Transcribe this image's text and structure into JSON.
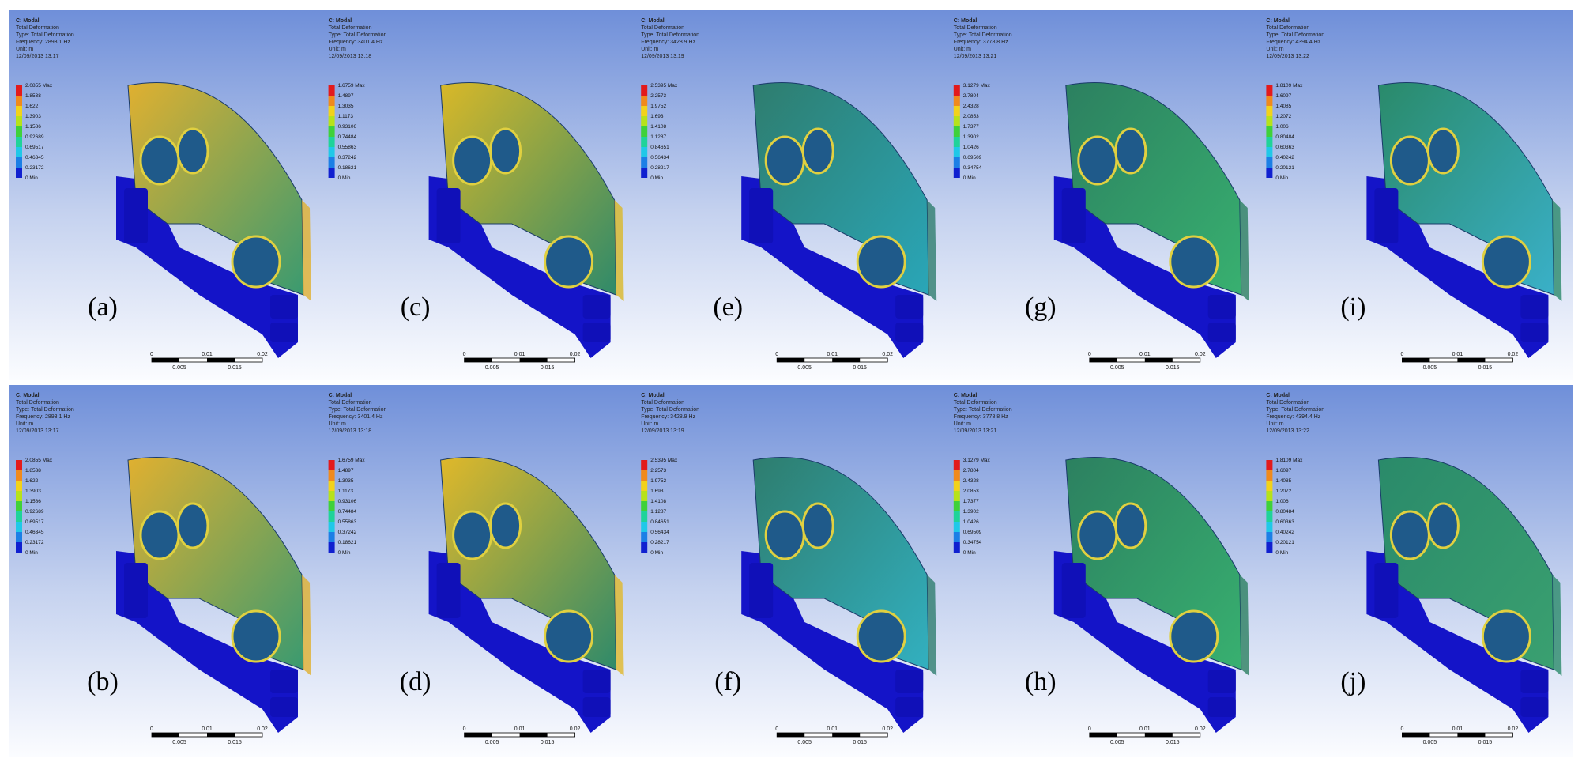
{
  "panels": [
    {
      "label": "(a)",
      "header": [
        "C: Modal",
        "Total Deformation",
        "Type: Total Deformation",
        "Frequency: 2893.1 Hz",
        "Unit: m",
        "12/09/2013 13:17"
      ],
      "legend": [
        "2.0855 Max",
        "1.8538",
        "1.622",
        "1.3903",
        "1.1586",
        "0.92689",
        "0.69517",
        "0.46345",
        "0.23172",
        "0 Min"
      ],
      "scale": [
        "0",
        "0.01",
        "0.02",
        "0.005",
        "0.015"
      ]
    },
    {
      "label": "(b)",
      "header": [
        "C: Modal",
        "Total Deformation",
        "Type: Total Deformation",
        "Frequency: 2893.1 Hz",
        "Unit: m",
        "12/09/2013 13:17"
      ],
      "legend": [
        "2.0855 Max",
        "1.8538",
        "1.622",
        "1.3903",
        "1.1586",
        "0.92689",
        "0.69517",
        "0.46345",
        "0.23172",
        "0 Min"
      ],
      "scale": [
        "0",
        "0.01",
        "0.02",
        "0.005",
        "0.015"
      ]
    },
    {
      "label": "(c)",
      "header": [
        "C: Modal",
        "Total Deformation",
        "Type: Total Deformation",
        "Frequency: 3401.4 Hz",
        "Unit: m",
        "12/09/2013 13:18"
      ],
      "legend": [
        "1.6759 Max",
        "1.4897",
        "1.3035",
        "1.1173",
        "0.93106",
        "0.74484",
        "0.55863",
        "0.37242",
        "0.18621",
        "0 Min"
      ],
      "scale": [
        "0",
        "0.01",
        "0.02",
        "0.005",
        "0.015"
      ]
    },
    {
      "label": "(d)",
      "header": [
        "C: Modal",
        "Total Deformation",
        "Type: Total Deformation",
        "Frequency: 3401.4 Hz",
        "Unit: m",
        "12/09/2013 13:18"
      ],
      "legend": [
        "1.6759 Max",
        "1.4897",
        "1.3035",
        "1.1173",
        "0.93106",
        "0.74484",
        "0.55863",
        "0.37242",
        "0.18621",
        "0 Min"
      ],
      "scale": [
        "0",
        "0.01",
        "0.02",
        "0.005",
        "0.015"
      ]
    },
    {
      "label": "(e)",
      "header": [
        "C: Modal",
        "Total Deformation",
        "Type: Total Deformation",
        "Frequency: 3428.9 Hz",
        "Unit: m",
        "12/09/2013 13:19"
      ],
      "legend": [
        "2.5395 Max",
        "2.2573",
        "1.9752",
        "1.693",
        "1.4108",
        "1.1287",
        "0.84651",
        "0.56434",
        "0.28217",
        "0 Min"
      ],
      "scale": [
        "0",
        "0.01",
        "0.02",
        "0.005",
        "0.015"
      ]
    },
    {
      "label": "(f)",
      "header": [
        "C: Modal",
        "Total Deformation",
        "Type: Total Deformation",
        "Frequency: 3428.9 Hz",
        "Unit: m",
        "12/09/2013 13:19"
      ],
      "legend": [
        "2.5395 Max",
        "2.2573",
        "1.9752",
        "1.693",
        "1.4108",
        "1.1287",
        "0.84651",
        "0.56434",
        "0.28217",
        "0 Min"
      ],
      "scale": [
        "0",
        "0.01",
        "0.02",
        "0.005",
        "0.015"
      ]
    },
    {
      "label": "(g)",
      "header": [
        "C: Modal",
        "Total Deformation",
        "Type: Total Deformation",
        "Frequency: 3778.8 Hz",
        "Unit: m",
        "12/09/2013 13:21"
      ],
      "legend": [
        "3.1279 Max",
        "2.7804",
        "2.4328",
        "2.0853",
        "1.7377",
        "1.3902",
        "1.0426",
        "0.69509",
        "0.34754",
        "0 Min"
      ],
      "scale": [
        "0",
        "0.01",
        "0.02",
        "0.005",
        "0.015"
      ]
    },
    {
      "label": "(h)",
      "header": [
        "C: Modal",
        "Total Deformation",
        "Type: Total Deformation",
        "Frequency: 3778.8 Hz",
        "Unit: m",
        "12/09/2013 13:21"
      ],
      "legend": [
        "3.1279 Max",
        "2.7804",
        "2.4328",
        "2.0853",
        "1.7377",
        "1.3902",
        "1.0426",
        "0.69509",
        "0.34754",
        "0 Min"
      ],
      "scale": [
        "0",
        "0.01",
        "0.02",
        "0.005",
        "0.015"
      ]
    },
    {
      "label": "(i)",
      "header": [
        "C: Modal",
        "Total Deformation",
        "Type: Total Deformation",
        "Frequency: 4394.4 Hz",
        "Unit: m",
        "12/09/2013 13:22"
      ],
      "legend": [
        "1.8109 Max",
        "1.6097",
        "1.4085",
        "1.2072",
        "1.006",
        "0.80484",
        "0.60363",
        "0.40242",
        "0.20121",
        "0 Min"
      ],
      "scale": [
        "0",
        "0.01",
        "0.02",
        "0.005",
        "0.015"
      ]
    },
    {
      "label": "(j)",
      "header": [
        "C: Modal",
        "Total Deformation",
        "Type: Total Deformation",
        "Frequency: 4394.4 Hz",
        "Unit: m",
        "12/09/2013 13:22"
      ],
      "legend": [
        "1.8109 Max",
        "1.6097",
        "1.4085",
        "1.2072",
        "1.006",
        "0.80484",
        "0.60363",
        "0.40242",
        "0.20121",
        "0 Min"
      ],
      "scale": [
        "0",
        "0.01",
        "0.02",
        "0.005",
        "0.015"
      ]
    }
  ]
}
